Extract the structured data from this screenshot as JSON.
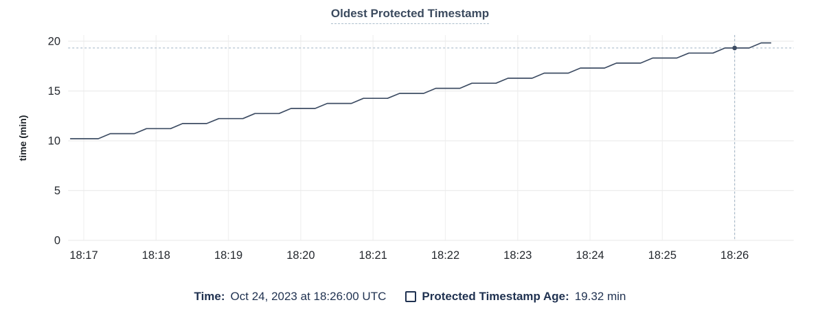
{
  "chart": {
    "title": "Oldest Protected Timestamp",
    "ylabel": "time (min)"
  },
  "legend": {
    "time_label": "Time:",
    "time_value": "Oct 24, 2023 at 18:26:00 UTC",
    "series_label": "Protected Timestamp Age:",
    "series_value": "19.32 min"
  },
  "colors": {
    "line": "#3d4c63",
    "dot": "#3d4c63",
    "crosshair": "#9eb2c4",
    "grid_horizontal": "#ececec",
    "grid_vertical": "#f1f1f1",
    "title": "#3b4a5e",
    "title_underline": "#a9bccb",
    "legend_text": "#1f3150",
    "tick_text": "#24282e"
  },
  "chart_data": {
    "type": "line",
    "title": "Oldest Protected Timestamp",
    "xlabel": "",
    "ylabel": "time (min)",
    "grid": true,
    "x_axis": {
      "tick_labels": [
        "18:17",
        "18:18",
        "18:19",
        "18:20",
        "18:21",
        "18:22",
        "18:23",
        "18:24",
        "18:25",
        "18:26"
      ],
      "tick_seconds": [
        0,
        60,
        120,
        180,
        240,
        300,
        360,
        420,
        480,
        540
      ],
      "domain_seconds": [
        -13,
        589
      ]
    },
    "y_axis": {
      "ticks": [
        0,
        5,
        10,
        15,
        20
      ],
      "range": [
        0,
        20.6
      ]
    },
    "series": [
      {
        "name": "Protected Timestamp Age",
        "unit": "min",
        "points_t_v": [
          [
            -11,
            10.21
          ],
          [
            12,
            10.21
          ],
          [
            22,
            10.72
          ],
          [
            42,
            10.72
          ],
          [
            52,
            11.22
          ],
          [
            72,
            11.22
          ],
          [
            82,
            11.73
          ],
          [
            102,
            11.73
          ],
          [
            112,
            12.23
          ],
          [
            132,
            12.23
          ],
          [
            142,
            12.74
          ],
          [
            162,
            12.74
          ],
          [
            172,
            13.25
          ],
          [
            192,
            13.25
          ],
          [
            202,
            13.75
          ],
          [
            222,
            13.75
          ],
          [
            232,
            14.26
          ],
          [
            252,
            14.26
          ],
          [
            262,
            14.76
          ],
          [
            282,
            14.76
          ],
          [
            292,
            15.27
          ],
          [
            312,
            15.27
          ],
          [
            322,
            15.78
          ],
          [
            342,
            15.78
          ],
          [
            352,
            16.28
          ],
          [
            372,
            16.28
          ],
          [
            382,
            16.79
          ],
          [
            402,
            16.79
          ],
          [
            412,
            17.3
          ],
          [
            432,
            17.3
          ],
          [
            442,
            17.8
          ],
          [
            462,
            17.8
          ],
          [
            472,
            18.31
          ],
          [
            492,
            18.31
          ],
          [
            502,
            18.81
          ],
          [
            522,
            18.81
          ],
          [
            532,
            19.32
          ],
          [
            552,
            19.32
          ],
          [
            562,
            19.83
          ],
          [
            570,
            19.83
          ]
        ]
      }
    ],
    "highlight_point": {
      "t_seconds": 540,
      "time_label": "Oct 24, 2023 at 18:26:00 UTC",
      "value_min": 19.32
    },
    "legend_position": "bottom-center"
  }
}
